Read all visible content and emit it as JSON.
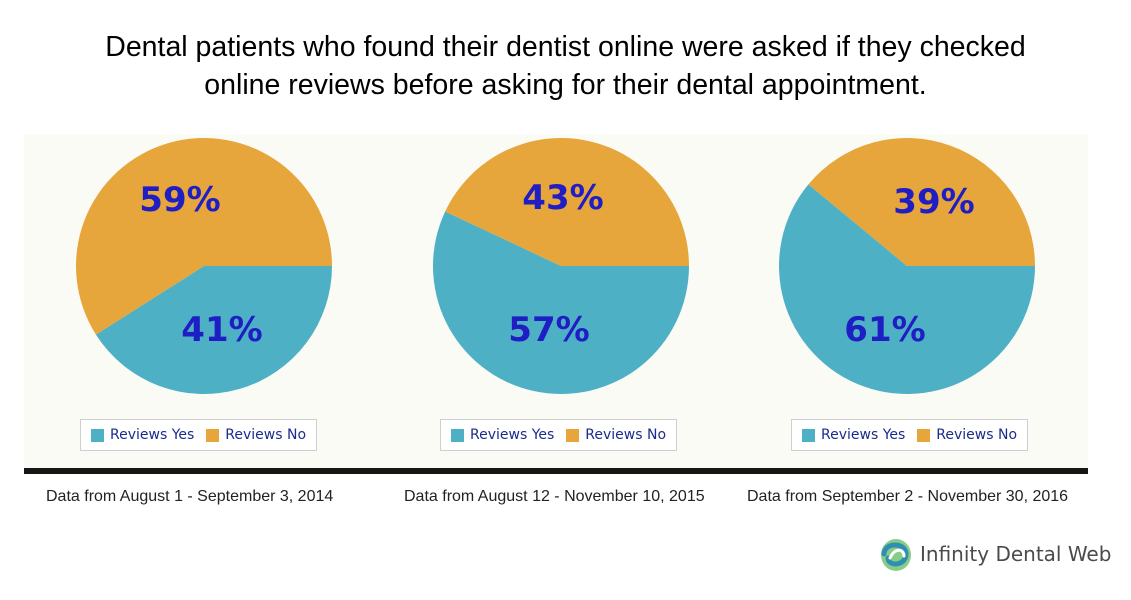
{
  "title_line1": "Dental patients who found their dentist online were asked if they checked",
  "title_line2": "online reviews before asking for their dental appointment.",
  "colors": {
    "yes": "#4db0c5",
    "no": "#e6a63b",
    "label": "#1f1dc4"
  },
  "chart_data": [
    {
      "type": "pie",
      "labels": [
        "Reviews Yes",
        "Reviews No"
      ],
      "values": [
        41,
        59
      ],
      "value_labels": [
        "41%",
        "59%"
      ],
      "caption": "Data from August 1 - September 3, 2014",
      "legend_position": "bottom"
    },
    {
      "type": "pie",
      "labels": [
        "Reviews Yes",
        "Reviews No"
      ],
      "values": [
        57,
        43
      ],
      "value_labels": [
        "57%",
        "43%"
      ],
      "caption": "Data from August 12 - November 10, 2015",
      "legend_position": "bottom"
    },
    {
      "type": "pie",
      "labels": [
        "Reviews Yes",
        "Reviews No"
      ],
      "values": [
        61,
        39
      ],
      "value_labels": [
        "61%",
        "39%"
      ],
      "caption": "Data from September 2 - November 30, 2016",
      "legend_position": "bottom"
    }
  ],
  "brand": {
    "name": "Infinity Dental Web",
    "icon": "infinity-tooth-logo-icon"
  }
}
